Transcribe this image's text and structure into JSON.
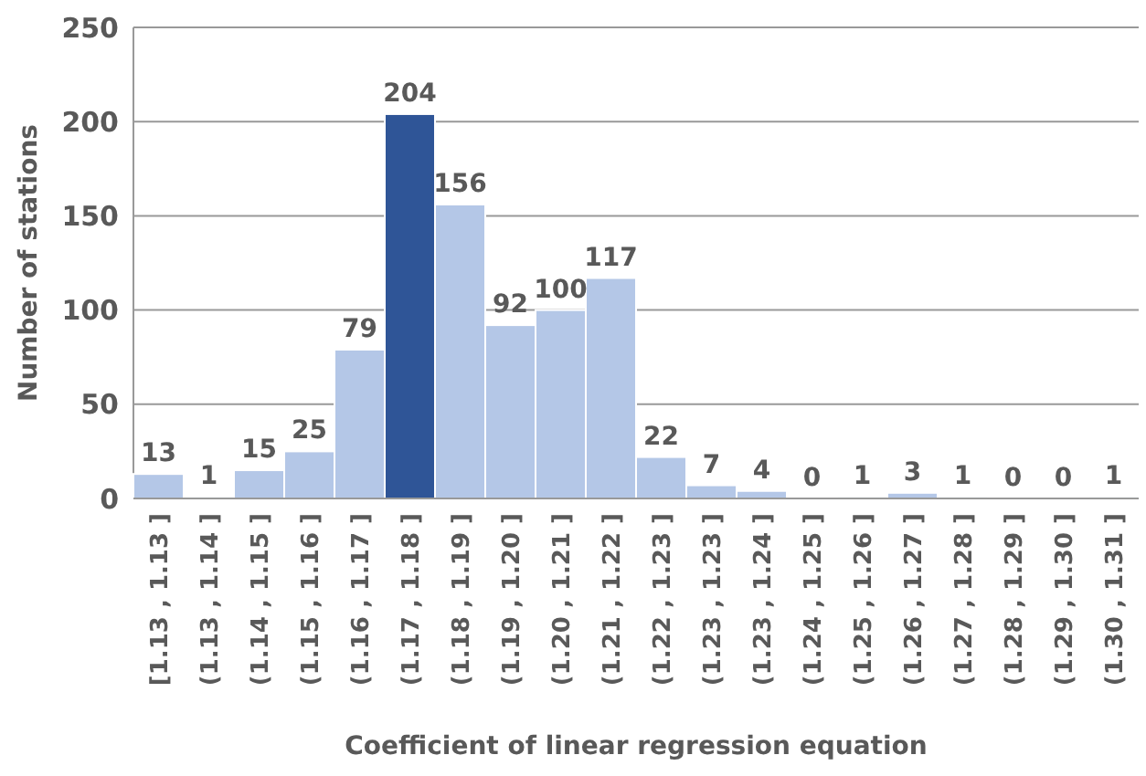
{
  "chart_data": {
    "type": "bar",
    "xlabel": "Coefficient of linear regression equation",
    "ylabel": "Number of stations",
    "categories": [
      "[1.13 , 1.13 ]",
      "(1.13 , 1.14 ]",
      "(1.14 , 1.15 ]",
      "(1.15 , 1.16 ]",
      "(1.16 , 1.17 ]",
      "(1.17 , 1.18 ]",
      "(1.18 , 1.19 ]",
      "(1.19 , 1.20 ]",
      "(1.20 , 1.21 ]",
      "(1.21 , 1.22 ]",
      "(1.22 , 1.23 ]",
      "(1.23 , 1.23 ]",
      "(1.23 , 1.24 ]",
      "(1.24 , 1.25 ]",
      "(1.25 , 1.26 ]",
      "(1.26 , 1.27 ]",
      "(1.27 , 1.28 ]",
      "(1.28 , 1.29 ]",
      "(1.29 , 1.30 ]",
      "(1.30 , 1.31 ]"
    ],
    "values": [
      13,
      1,
      15,
      25,
      79,
      204,
      156,
      92,
      100,
      117,
      22,
      7,
      4,
      0,
      1,
      3,
      1,
      0,
      0,
      1
    ],
    "colors": [
      "#b4c7e7",
      "#b4c7e7",
      "#b4c7e7",
      "#b4c7e7",
      "#b4c7e7",
      "#2f5597",
      "#b4c7e7",
      "#b4c7e7",
      "#b4c7e7",
      "#b4c7e7",
      "#b4c7e7",
      "#b4c7e7",
      "#b4c7e7",
      "#b4c7e7",
      "#b4c7e7",
      "#b4c7e7",
      "#b4c7e7",
      "#b4c7e7",
      "#b4c7e7",
      "#b4c7e7"
    ],
    "ylim": [
      0,
      250
    ],
    "yticks": [
      0,
      50,
      100,
      150,
      200,
      250
    ],
    "grid": "y",
    "data_labels": true
  }
}
